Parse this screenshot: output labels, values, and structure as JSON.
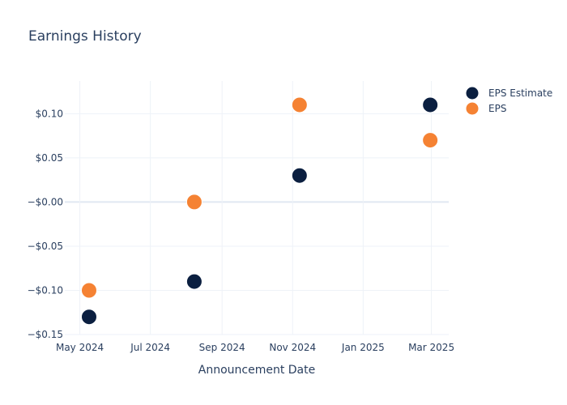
{
  "chart_data": {
    "type": "scatter",
    "title": "Earnings History",
    "xlabel": "Announcement Date",
    "ylabel": "",
    "x_tick_labels": [
      "May 2024",
      "Jul 2024",
      "Sep 2024",
      "Nov 2024",
      "Jan 2025",
      "Mar 2025"
    ],
    "x_tick_dates": [
      "2024-05-01",
      "2024-07-01",
      "2024-09-01",
      "2024-11-01",
      "2025-01-01",
      "2025-03-01"
    ],
    "xlim": [
      "2024-04-18",
      "2025-03-16"
    ],
    "y_tick_labels": [
      "$0.10",
      "$0.05",
      "−$0.00",
      "−$0.05",
      "−$0.10",
      "−$0.15"
    ],
    "y_tick_values": [
      0.1,
      0.05,
      0.0,
      -0.05,
      -0.1,
      -0.15
    ],
    "ylim": [
      -0.15,
      0.137
    ],
    "grid": true,
    "legend_position": "top-right",
    "series": [
      {
        "name": "EPS Estimate",
        "color": "#0b1f40",
        "points": [
          {
            "x": "2024-05-09",
            "y": -0.13
          },
          {
            "x": "2024-08-08",
            "y": -0.09
          },
          {
            "x": "2024-11-07",
            "y": 0.03
          },
          {
            "x": "2025-02-28",
            "y": 0.11
          }
        ]
      },
      {
        "name": "EPS",
        "color": "#f58233",
        "points": [
          {
            "x": "2024-05-09",
            "y": -0.1
          },
          {
            "x": "2024-08-08",
            "y": 0.0
          },
          {
            "x": "2024-11-07",
            "y": 0.11
          },
          {
            "x": "2025-02-28",
            "y": 0.07
          }
        ]
      }
    ]
  }
}
